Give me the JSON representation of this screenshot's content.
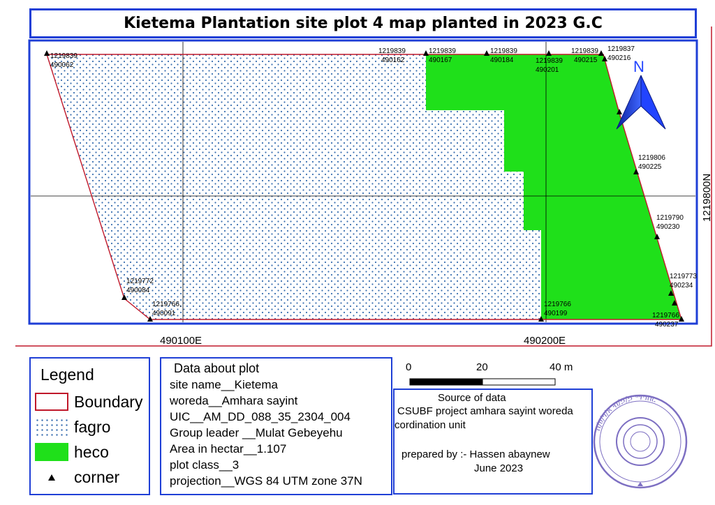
{
  "title": "Kietema Plantation site plot 4 map planted in 2023 G.C",
  "grid_labels": {
    "x_left": "490100E",
    "x_right": "490200E",
    "y_right": "1219800N"
  },
  "north_arrow": "N",
  "corner_labels": [
    {
      "n": "1219839",
      "e": "490062"
    },
    {
      "n": "1219839",
      "e": "490162"
    },
    {
      "n": "1219839",
      "e": "490167"
    },
    {
      "n": "1219839",
      "e": "490184"
    },
    {
      "n": "1219839",
      "e": "490201"
    },
    {
      "n": "1219839",
      "e": "490215"
    },
    {
      "n": "1219837",
      "e": "490216"
    },
    {
      "n": "1219806",
      "e": "490225"
    },
    {
      "n": "1219790",
      "e": "490230"
    },
    {
      "n": "1219773",
      "e": "490234"
    },
    {
      "n": "1219766",
      "e": "490237"
    },
    {
      "n": "1219766",
      "e": "490199"
    },
    {
      "n": "1219766,",
      "e": "490091"
    },
    {
      "n": "1219772",
      "e": "490084"
    }
  ],
  "legend": {
    "title": "Legend",
    "items": [
      {
        "label": "Boundary",
        "kind": "boundary"
      },
      {
        "label": "fagro",
        "kind": "dots"
      },
      {
        "label": "heco",
        "kind": "fill"
      },
      {
        "label": "corner",
        "kind": "triangle"
      }
    ]
  },
  "plot_info": {
    "title": "Data about plot",
    "lines": [
      "site name__Kietema",
      "woreda__Amhara sayint",
      "UIC__AM_DD_088_35_2304_004",
      "Group leader __Mulat Gebeyehu",
      "Area in hectar__1.107",
      "plot class__3",
      "projection__WGS 84 UTM zone 37N"
    ]
  },
  "scale_bar": {
    "labels": [
      "0",
      "20",
      "40 m"
    ]
  },
  "source": {
    "heading": "Source of data",
    "line1": "CSUBF project amhara sayint woreda",
    "line2": "cordination unit",
    "prepared": "prepared by :- Hassen abaynew",
    "date": "June 2023"
  },
  "stamp": {
    "text": "ስ/ሀ/ጎ/ጸ ብ/ኃ/ኃ ማኅበር"
  },
  "colors": {
    "frame": "#1f3fd6",
    "boundary": "#c0182a",
    "heco": "#1fe01a",
    "fagro_dot": "#3a6fb0",
    "stamp": "#7d6fc2"
  }
}
